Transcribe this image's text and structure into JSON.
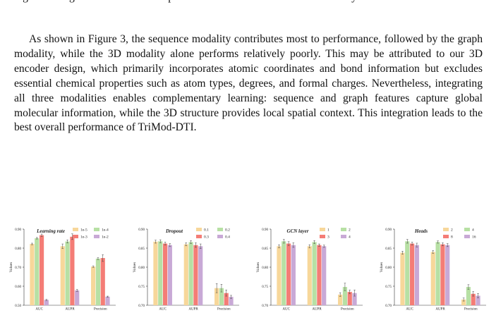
{
  "top_partial_line": "logue and Fig. 3 shows the overall performance contribution of each modality.",
  "paragraph": "As shown in Figure 3, the sequence modality contributes most to performance, followed by the graph modality, while the 3D modality alone performs relatively poorly. This may be attributed to our 3D encoder design, which primarily incorporates atomic coordinates and bond information but excludes essential chemical properties such as atom types, degrees, and formal charges. Nevertheless, integrating all three modalities enables complementary learning: sequence and graph features capture global molecular information, while the 3D structure provides local spatial context. This integration leads to the best overall performance of TriMod-DTI.",
  "colors": [
    "#f7d79a",
    "#b7e0a4",
    "#f47d76",
    "#c8a9d6"
  ],
  "chart_data": [
    {
      "type": "bar",
      "title": "Learning rate",
      "ylabel": "Values",
      "ylim": [
        0.5,
        0.9
      ],
      "yticks": [
        "0.50",
        "0.60",
        "0.70",
        "0.80",
        "0.90"
      ],
      "categories": [
        "AUC",
        "AUPR",
        "Precision"
      ],
      "series": [
        {
          "name": "1e-5",
          "values": [
            0.822,
            0.81,
            0.703
          ],
          "err": [
            0.004,
            0.012,
            0.004
          ]
        },
        {
          "name": "1e-4",
          "values": [
            0.852,
            0.835,
            0.745
          ],
          "err": [
            0.004,
            0.008,
            0.005
          ]
        },
        {
          "name": "1e-3",
          "values": [
            0.868,
            0.86,
            0.748
          ],
          "err": [
            0.006,
            0.015,
            0.018
          ]
        },
        {
          "name": "1e-2",
          "values": [
            0.528,
            0.578,
            0.545
          ],
          "err": [
            0.003,
            0.005,
            0.003
          ]
        }
      ]
    },
    {
      "type": "bar",
      "title": "Dropout",
      "ylabel": "Values",
      "ylim": [
        0.7,
        0.9
      ],
      "yticks": [
        "0.70",
        "0.75",
        "0.80",
        "0.85",
        "0.90"
      ],
      "categories": [
        "AUC",
        "AUPR",
        "Precision"
      ],
      "series": [
        {
          "name": "0.1",
          "values": [
            0.867,
            0.86,
            0.745
          ],
          "err": [
            0.004,
            0.004,
            0.012
          ]
        },
        {
          "name": "0.2",
          "values": [
            0.868,
            0.866,
            0.745
          ],
          "err": [
            0.004,
            0.004,
            0.01
          ]
        },
        {
          "name": "0.3",
          "values": [
            0.862,
            0.858,
            0.732
          ],
          "err": [
            0.004,
            0.006,
            0.008
          ]
        },
        {
          "name": "0.4",
          "values": [
            0.858,
            0.855,
            0.722
          ],
          "err": [
            0.004,
            0.006,
            0.004
          ]
        }
      ]
    },
    {
      "type": "bar",
      "title": "GCN layer",
      "ylabel": "Values",
      "ylim": [
        0.7,
        0.9
      ],
      "yticks": [
        "0.70",
        "0.75",
        "0.80",
        "0.85",
        "0.90"
      ],
      "categories": [
        "AUC",
        "AUPR",
        "Precision"
      ],
      "series": [
        {
          "name": "1",
          "values": [
            0.855,
            0.855,
            0.728
          ],
          "err": [
            0.004,
            0.004,
            0.005
          ]
        },
        {
          "name": "2",
          "values": [
            0.868,
            0.866,
            0.748
          ],
          "err": [
            0.005,
            0.004,
            0.01
          ]
        },
        {
          "name": "3",
          "values": [
            0.862,
            0.858,
            0.735
          ],
          "err": [
            0.005,
            0.003,
            0.005
          ]
        },
        {
          "name": "4",
          "values": [
            0.858,
            0.855,
            0.732
          ],
          "err": [
            0.006,
            0.003,
            0.008
          ]
        }
      ]
    },
    {
      "type": "bar",
      "title": "Heads",
      "ylabel": "Values",
      "ylim": [
        0.7,
        0.9
      ],
      "yticks": [
        "0.70",
        "0.75",
        "0.80",
        "0.85",
        "0.90"
      ],
      "categories": [
        "AUC",
        "AUPR",
        "Precision"
      ],
      "series": [
        {
          "name": "2",
          "values": [
            0.838,
            0.84,
            0.715
          ],
          "err": [
            0.004,
            0.004,
            0.004
          ]
        },
        {
          "name": "4",
          "values": [
            0.868,
            0.866,
            0.748
          ],
          "err": [
            0.005,
            0.003,
            0.006
          ]
        },
        {
          "name": "8",
          "values": [
            0.862,
            0.86,
            0.73
          ],
          "err": [
            0.004,
            0.004,
            0.006
          ]
        },
        {
          "name": "16",
          "values": [
            0.858,
            0.858,
            0.725
          ],
          "err": [
            0.005,
            0.004,
            0.006
          ]
        }
      ]
    }
  ]
}
